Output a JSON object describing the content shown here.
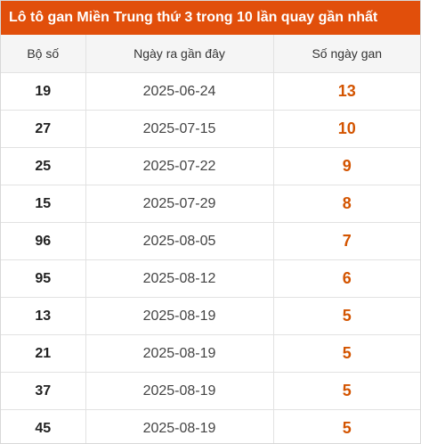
{
  "title": "Lô tô gan Miền Trung thứ 3 trong 10 lần quay gần nhất",
  "colors": {
    "header_bg": "#e14f0b",
    "gan_value": "#d35400"
  },
  "columns": [
    "Bộ số",
    "Ngày ra gần đây",
    "Số ngày gan"
  ],
  "rows": [
    {
      "number": "19",
      "date": "2025-06-24",
      "days": "13"
    },
    {
      "number": "27",
      "date": "2025-07-15",
      "days": "10"
    },
    {
      "number": "25",
      "date": "2025-07-22",
      "days": "9"
    },
    {
      "number": "15",
      "date": "2025-07-29",
      "days": "8"
    },
    {
      "number": "96",
      "date": "2025-08-05",
      "days": "7"
    },
    {
      "number": "95",
      "date": "2025-08-12",
      "days": "6"
    },
    {
      "number": "13",
      "date": "2025-08-19",
      "days": "5"
    },
    {
      "number": "21",
      "date": "2025-08-19",
      "days": "5"
    },
    {
      "number": "37",
      "date": "2025-08-19",
      "days": "5"
    },
    {
      "number": "45",
      "date": "2025-08-19",
      "days": "5"
    }
  ]
}
